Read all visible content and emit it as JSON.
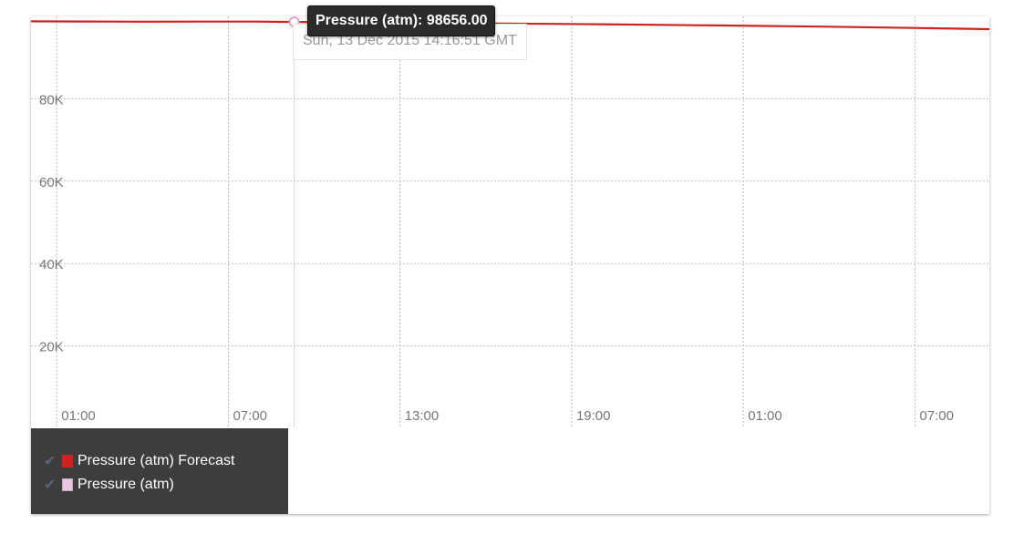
{
  "chart_data": {
    "type": "line",
    "y_tick_labels": [
      "20K",
      "40K",
      "60K",
      "80K"
    ],
    "y_ticks": [
      20000,
      40000,
      60000,
      80000
    ],
    "ylim": [
      0,
      100000
    ],
    "x_tick_labels": [
      "01:00",
      "07:00",
      "13:00",
      "19:00",
      "01:00",
      "07:00"
    ],
    "x_ticks_hours": [
      1,
      7,
      13,
      19,
      25,
      31
    ],
    "xlim_hours": [
      0.1,
      33.6
    ],
    "grid": true,
    "legend_position": "bottom-left",
    "series": [
      {
        "name": "Pressure (atm) Forecast",
        "color": "#cc2222",
        "x_hours": [
          0.1,
          2,
          4,
          6,
          8,
          9.3,
          12,
          16,
          20,
          24,
          28,
          31,
          33.6
        ],
        "values": [
          98800,
          98760,
          98720,
          98740,
          98740,
          98656,
          98600,
          98300,
          98100,
          97800,
          97500,
          97200,
          96900
        ]
      },
      {
        "name": "Pressure (atm)",
        "color": "#e8c6e0",
        "x_hours": [
          9.3
        ],
        "values": [
          98656
        ]
      }
    ],
    "tooltip": {
      "label": "Pressure (atm): 98656.00",
      "time": "Sun, 13 Dec 2015 14:16:51 GMT",
      "x_hours": 9.3,
      "value": 98656
    }
  },
  "legend_check_icon": "check-icon"
}
